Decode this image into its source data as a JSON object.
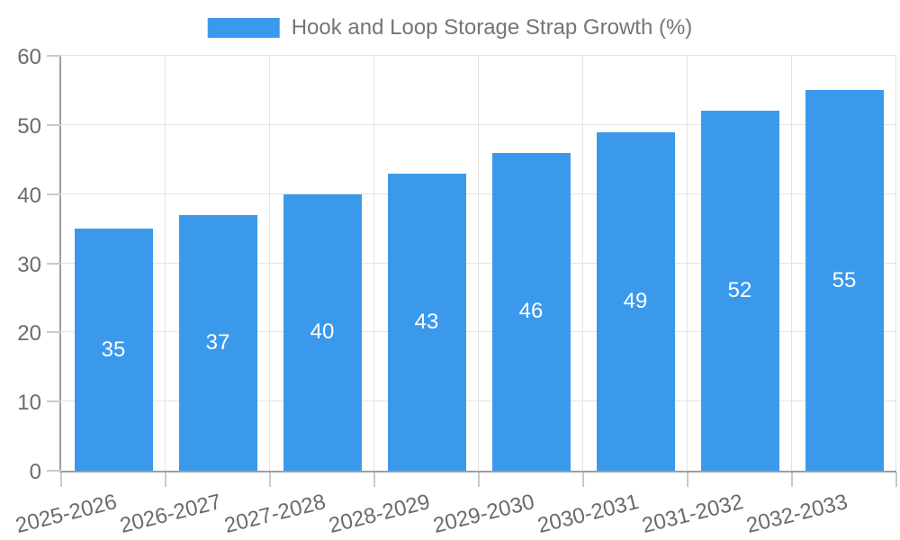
{
  "legend": {
    "label": "Hook and Loop Storage Strap Growth (%)",
    "swatch_color": "#3b99ec"
  },
  "chart_data": {
    "type": "bar",
    "title": "Hook and Loop Storage Strap Growth (%)",
    "categories": [
      "2025-2026",
      "2026-2027",
      "2027-2028",
      "2028-2029",
      "2029-2030",
      "2030-2031",
      "2031-2032",
      "2032-2033"
    ],
    "values": [
      35,
      37,
      40,
      43,
      46,
      49,
      52,
      55
    ],
    "xlabel": "",
    "ylabel": "",
    "ylim": [
      0,
      60
    ],
    "ytick_labels": [
      "0",
      "10",
      "20",
      "30",
      "40",
      "50",
      "60"
    ],
    "ytick_step": 10,
    "grid": true,
    "legend_position": "top-center",
    "bar_color": "#3b99ec",
    "bar_value_label_color": "#ffffff",
    "axis_text_color": "#6b6b6b",
    "gridline_color": "#e3e3e3",
    "axis_line_color": "#9e9e9e"
  }
}
